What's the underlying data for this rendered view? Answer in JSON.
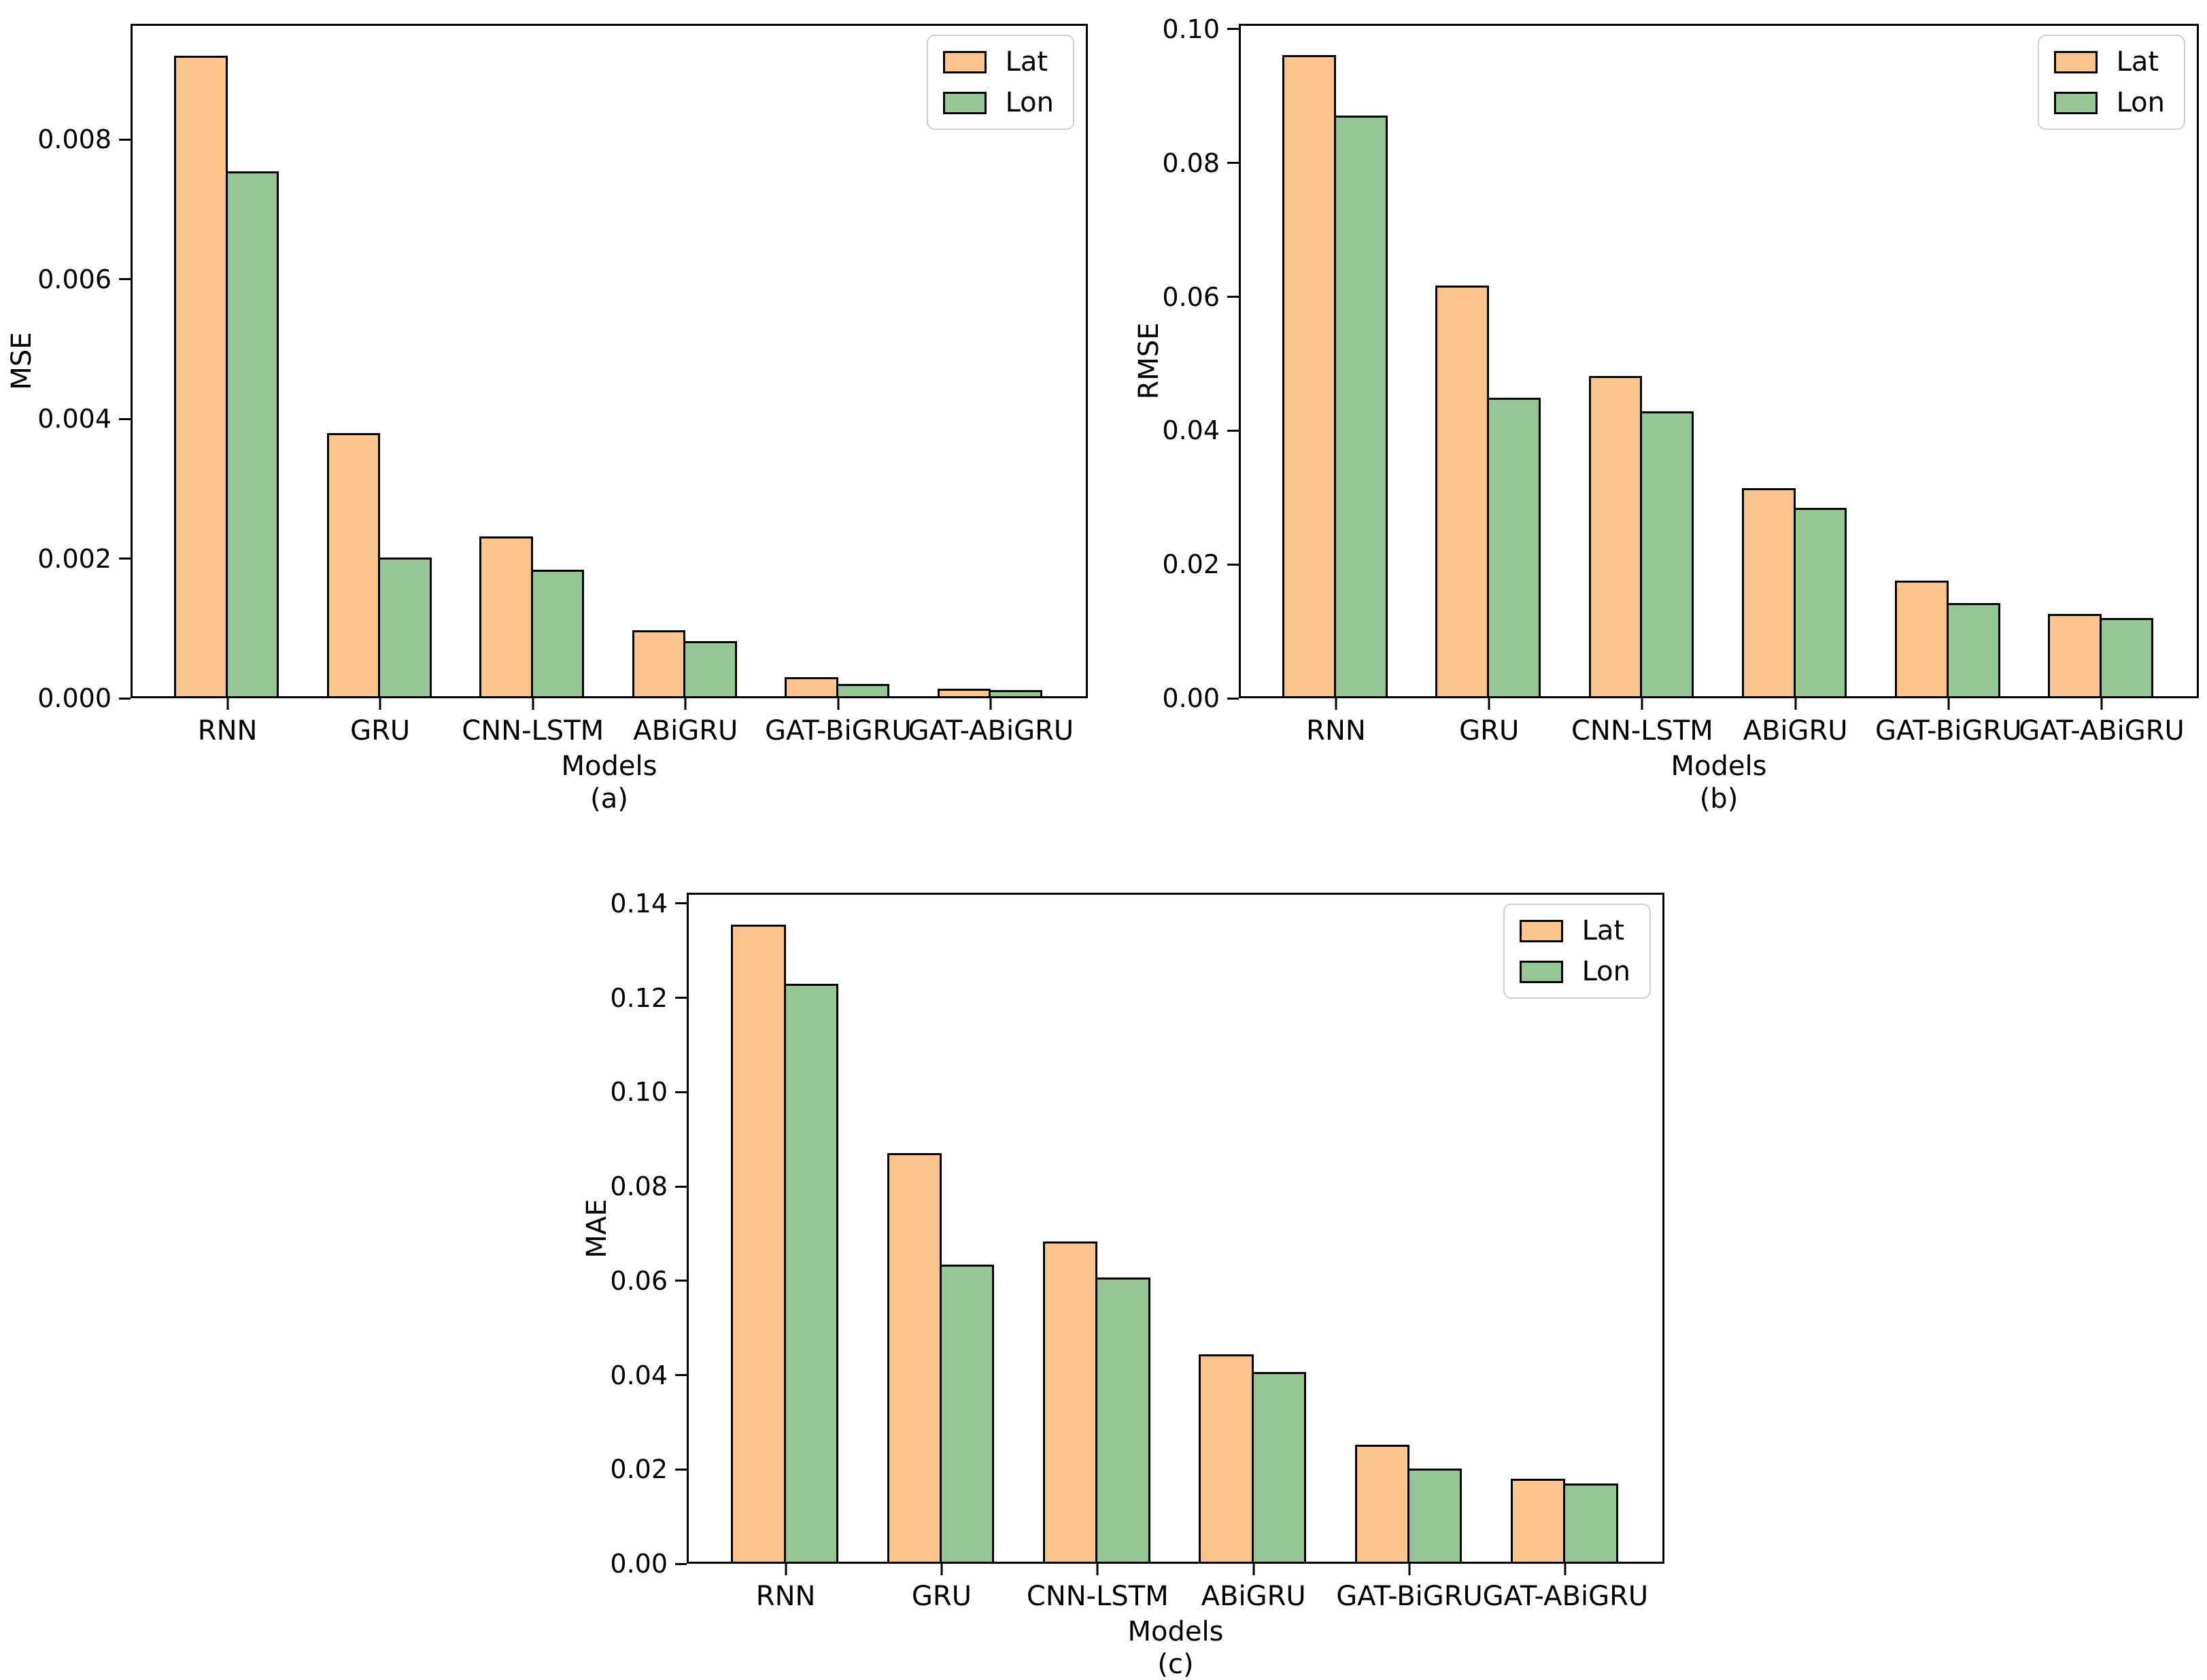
{
  "figure": {
    "background": "#ffffff",
    "grid": false,
    "legend_position": "upper right"
  },
  "colors": {
    "lat": "#FAC48C",
    "lon": "#94C794",
    "edge": "#000000"
  },
  "chart_data": [
    {
      "id": "a",
      "type": "bar",
      "caption": "(a)",
      "xlabel": "Models",
      "ylabel": "MSE",
      "legend": [
        "Lat",
        "Lon"
      ],
      "categories": [
        "RNN",
        "GRU",
        "CNN-LSTM",
        "ABiGRU",
        "GAT-BiGRU",
        "GAT-ABiGRU"
      ],
      "series": [
        {
          "name": "Lat",
          "values": [
            0.0092,
            0.0038,
            0.00232,
            0.00097,
            0.0003,
            0.00014
          ]
        },
        {
          "name": "Lon",
          "values": [
            0.00755,
            0.00202,
            0.00184,
            0.00082,
            0.0002,
            0.00012
          ]
        }
      ],
      "ylim": [
        0,
        0.00966
      ],
      "yticks": [
        {
          "value": 0.0,
          "label": "0.000"
        },
        {
          "value": 0.002,
          "label": "0.002"
        },
        {
          "value": 0.004,
          "label": "0.004"
        },
        {
          "value": 0.006,
          "label": "0.006"
        },
        {
          "value": 0.008,
          "label": "0.008"
        }
      ]
    },
    {
      "id": "b",
      "type": "bar",
      "caption": "(b)",
      "xlabel": "Models",
      "ylabel": "RMSE",
      "legend": [
        "Lat",
        "Lon"
      ],
      "categories": [
        "RNN",
        "GRU",
        "CNN-LSTM",
        "ABiGRU",
        "GAT-BiGRU",
        "GAT-ABiGRU"
      ],
      "series": [
        {
          "name": "Lat",
          "values": [
            0.0961,
            0.0617,
            0.0482,
            0.0314,
            0.0176,
            0.0126
          ]
        },
        {
          "name": "Lon",
          "values": [
            0.0871,
            0.0449,
            0.0429,
            0.0285,
            0.0142,
            0.012
          ]
        }
      ],
      "ylim": [
        0,
        0.1008
      ],
      "yticks": [
        {
          "value": 0.0,
          "label": "0.00"
        },
        {
          "value": 0.02,
          "label": "0.02"
        },
        {
          "value": 0.04,
          "label": "0.04"
        },
        {
          "value": 0.06,
          "label": "0.06"
        },
        {
          "value": 0.08,
          "label": "0.08"
        },
        {
          "value": 0.1,
          "label": "0.10"
        }
      ]
    },
    {
      "id": "c",
      "type": "bar",
      "caption": "(c)",
      "xlabel": "Models",
      "ylabel": "MAE",
      "legend": [
        "Lat",
        "Lon"
      ],
      "categories": [
        "RNN",
        "GRU",
        "CNN-LSTM",
        "ABiGRU",
        "GAT-BiGRU",
        "GAT-ABiGRU"
      ],
      "series": [
        {
          "name": "Lat",
          "values": [
            0.1355,
            0.087,
            0.0684,
            0.0444,
            0.0253,
            0.018
          ]
        },
        {
          "name": "Lon",
          "values": [
            0.123,
            0.0635,
            0.0607,
            0.0407,
            0.0202,
            0.017
          ]
        }
      ],
      "ylim": [
        0,
        0.14228
      ],
      "yticks": [
        {
          "value": 0.0,
          "label": "0.00"
        },
        {
          "value": 0.02,
          "label": "0.02"
        },
        {
          "value": 0.04,
          "label": "0.04"
        },
        {
          "value": 0.06,
          "label": "0.06"
        },
        {
          "value": 0.08,
          "label": "0.08"
        },
        {
          "value": 0.1,
          "label": "0.10"
        },
        {
          "value": 0.12,
          "label": "0.12"
        },
        {
          "value": 0.14,
          "label": "0.14"
        }
      ]
    }
  ]
}
